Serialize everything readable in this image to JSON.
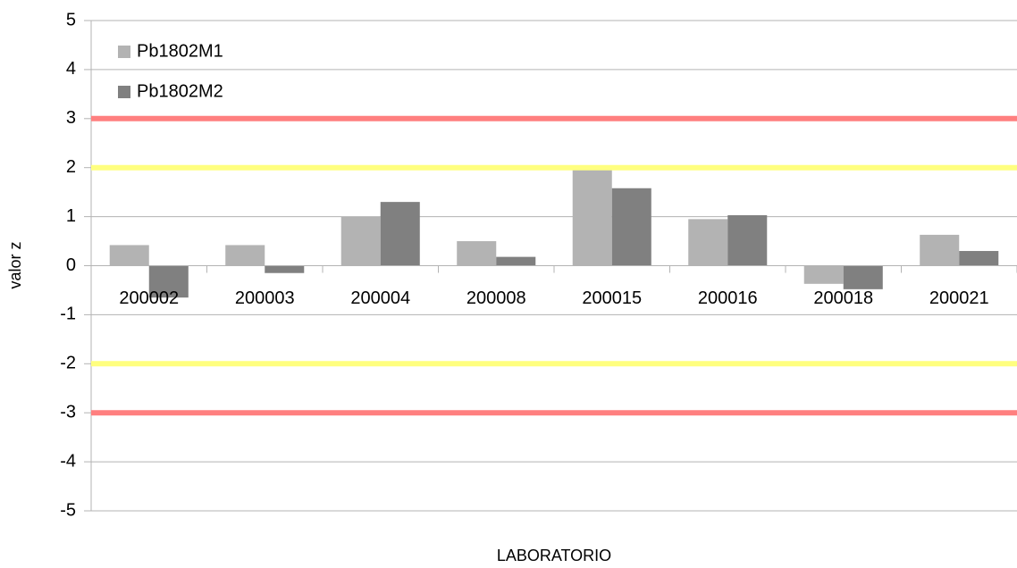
{
  "chart_data": {
    "type": "bar",
    "x_label": "LABORATORIO",
    "y_label": "valor z",
    "categories": [
      "200002",
      "200003",
      "200004",
      "200008",
      "200015",
      "200016",
      "200018",
      "200021"
    ],
    "series": [
      {
        "name": "Pb1802M1",
        "color": "#b3b3b3",
        "values": [
          0.42,
          0.42,
          1.0,
          0.5,
          2.0,
          0.95,
          -0.37,
          0.63
        ]
      },
      {
        "name": "Pb1802M2",
        "color": "#808080",
        "values": [
          -0.65,
          -0.15,
          1.3,
          0.18,
          1.58,
          1.03,
          -0.48,
          0.3
        ]
      }
    ],
    "reference_lines": [
      {
        "value": 3,
        "color": "#ff7f7f"
      },
      {
        "value": 2,
        "color": "#ffff7f"
      },
      {
        "value": -2,
        "color": "#ffff7f"
      },
      {
        "value": -3,
        "color": "#ff7f7f"
      }
    ],
    "ylim": [
      -5,
      5
    ],
    "yticks": [
      -5,
      -4,
      -3,
      -2,
      -1,
      0,
      1,
      2,
      3,
      4,
      5
    ],
    "grid": true,
    "legend": "top-left"
  }
}
